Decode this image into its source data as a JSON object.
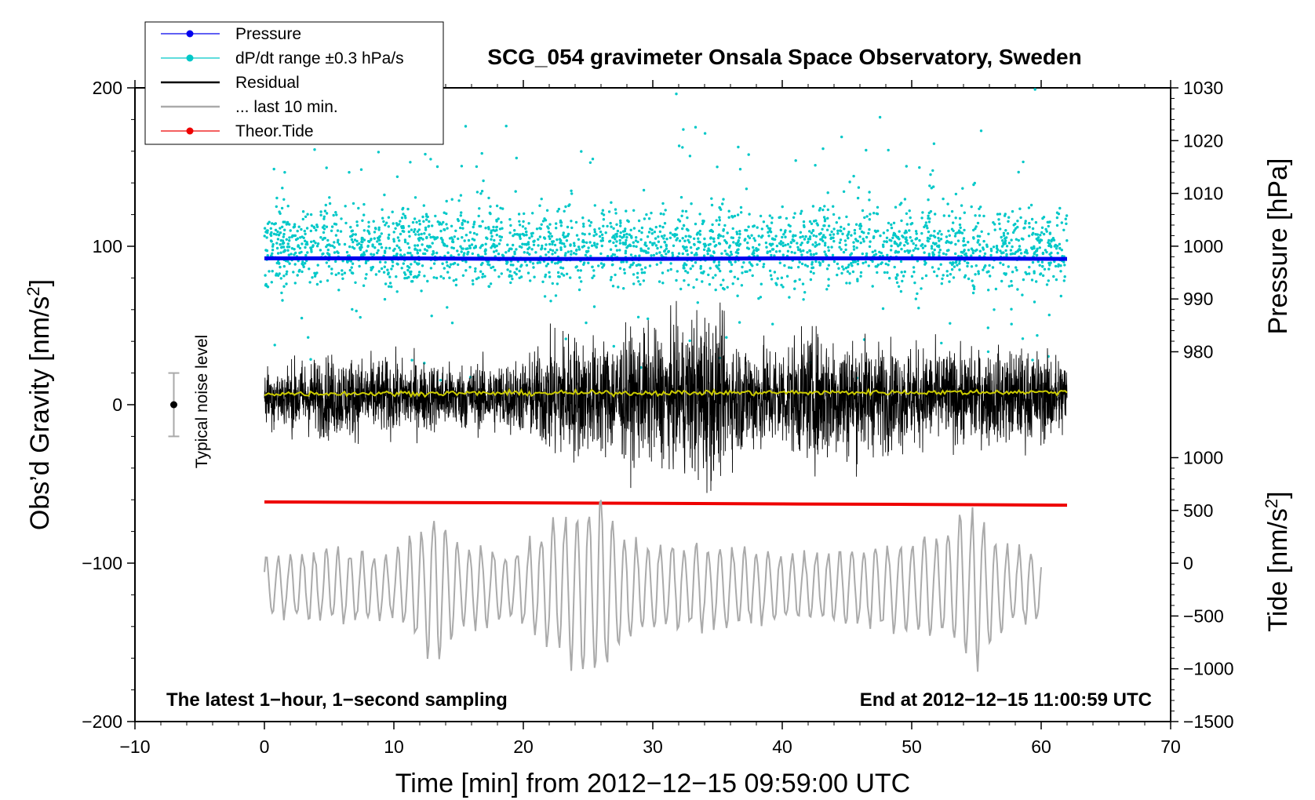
{
  "chart_data": {
    "type": "line",
    "title": "SCG_054 gravimeter Onsala Space Observatory, Sweden",
    "xlabel": "Time [min] from 2012−12−15 09:59:00 UTC",
    "ylabel_left": "Obs’d Gravity [nm/s",
    "ylabel_left_sup": "2",
    "ylabel_left_end": "]",
    "ylabel_right_pressure": "Pressure [hPa]",
    "ylabel_right_tide": "Tide [nm/s",
    "ylabel_right_tide_sup": "2",
    "ylabel_right_tide_end": "]",
    "xlim": [
      -10,
      70
    ],
    "ylim": [
      -200,
      200
    ],
    "pressure_lim": [
      1030,
      980
    ],
    "tide_lim": [
      -1500,
      1000
    ],
    "x_ticks": [
      {
        "v": -10,
        "label": "−10"
      },
      {
        "v": 0,
        "label": "0"
      },
      {
        "v": 10,
        "label": "10"
      },
      {
        "v": 20,
        "label": "20"
      },
      {
        "v": 30,
        "label": "30"
      },
      {
        "v": 40,
        "label": "40"
      },
      {
        "v": 50,
        "label": "50"
      },
      {
        "v": 60,
        "label": "60"
      },
      {
        "v": 70,
        "label": "70"
      }
    ],
    "y_ticks": [
      {
        "v": 200,
        "label": "200"
      },
      {
        "v": 100,
        "label": "100"
      },
      {
        "v": 0,
        "label": "0"
      },
      {
        "v": -100,
        "label": "−100"
      },
      {
        "v": -200,
        "label": "−200"
      }
    ],
    "pressure_ticks": [
      {
        "v": 1030,
        "label": "1030"
      },
      {
        "v": 1020,
        "label": "1020"
      },
      {
        "v": 1010,
        "label": "1010"
      },
      {
        "v": 1000,
        "label": "1000"
      },
      {
        "v": 990,
        "label": "990"
      },
      {
        "v": 980,
        "label": "980"
      }
    ],
    "tide_ticks": [
      {
        "v": 1000,
        "label": "1000"
      },
      {
        "v": 500,
        "label": "500"
      },
      {
        "v": 0,
        "label": "0"
      },
      {
        "v": -500,
        "label": "−500"
      },
      {
        "v": -1000,
        "label": "−1000"
      },
      {
        "v": -1500,
        "label": "−1500"
      }
    ],
    "legend": [
      {
        "name": "Pressure",
        "color": "#0000ee",
        "marker": true
      },
      {
        "name": "dP/dt range ±0.3 hPa/s",
        "color": "#00c8c8",
        "marker": true
      },
      {
        "name": "Residual",
        "color": "#000000",
        "marker": false
      },
      {
        "name": "... last 10 min.",
        "color": "#aaaaaa",
        "marker": false
      },
      {
        "name": "Theor.Tide",
        "color": "#ee0000",
        "marker": true
      }
    ],
    "annotation_left": "The latest 1−hour, 1−second sampling",
    "annotation_right": "End at 2012−12−15 11:00:59 UTC",
    "noise_label": "Typical noise level",
    "noise_bar": {
      "x": -7,
      "center": 0,
      "low": -20,
      "high": 20
    },
    "series": [
      {
        "name": "Pressure",
        "axis": "pressure",
        "color": "#0000ee",
        "x": [
          0,
          10,
          20,
          30,
          40,
          50,
          62
        ],
        "values": [
          997.7,
          997.7,
          997.6,
          997.6,
          997.7,
          997.7,
          997.6
        ]
      },
      {
        "name": "dP/dt range ±0.3 hPa/s",
        "axis": "gravity",
        "color": "#00c8c8",
        "x_range": [
          0,
          62
        ],
        "center": 100,
        "spread": 12,
        "count": 2600
      },
      {
        "name": "Residual",
        "axis": "gravity",
        "color": "#000000",
        "x_range": [
          0,
          62
        ],
        "center": 5,
        "envelope": [
          [
            0,
            20
          ],
          [
            5,
            28
          ],
          [
            10,
            25
          ],
          [
            15,
            22
          ],
          [
            20,
            25
          ],
          [
            23,
            45
          ],
          [
            25,
            38
          ],
          [
            28,
            42
          ],
          [
            32,
            45
          ],
          [
            34,
            62
          ],
          [
            36,
            40
          ],
          [
            40,
            35
          ],
          [
            43,
            45
          ],
          [
            46,
            40
          ],
          [
            48,
            35
          ],
          [
            52,
            32
          ],
          [
            55,
            30
          ],
          [
            58,
            32
          ],
          [
            62,
            28
          ]
        ]
      },
      {
        "name": "Residual mean",
        "axis": "gravity",
        "color": "#cccc00",
        "x": [
          0,
          62
        ],
        "values": [
          7,
          8
        ]
      },
      {
        "name": "... last 10 min.",
        "axis": "gravity",
        "color": "#aaaaaa",
        "x_range": [
          0,
          60
        ],
        "center": -115,
        "envelope": [
          [
            0,
            20
          ],
          [
            5,
            25
          ],
          [
            10,
            22
          ],
          [
            13,
            50
          ],
          [
            15,
            30
          ],
          [
            19,
            22
          ],
          [
            24,
            55
          ],
          [
            26,
            60
          ],
          [
            28,
            35
          ],
          [
            31,
            30
          ],
          [
            34,
            28
          ],
          [
            38,
            25
          ],
          [
            42,
            22
          ],
          [
            47,
            28
          ],
          [
            52,
            32
          ],
          [
            55,
            55
          ],
          [
            57,
            30
          ],
          [
            60,
            22
          ]
        ]
      },
      {
        "name": "Theor.Tide",
        "axis": "tide",
        "color": "#ee0000",
        "x": [
          0,
          10,
          20,
          30,
          40,
          50,
          62
        ],
        "values": [
          580,
          576,
          572,
          567,
          562,
          557,
          550
        ]
      }
    ]
  }
}
